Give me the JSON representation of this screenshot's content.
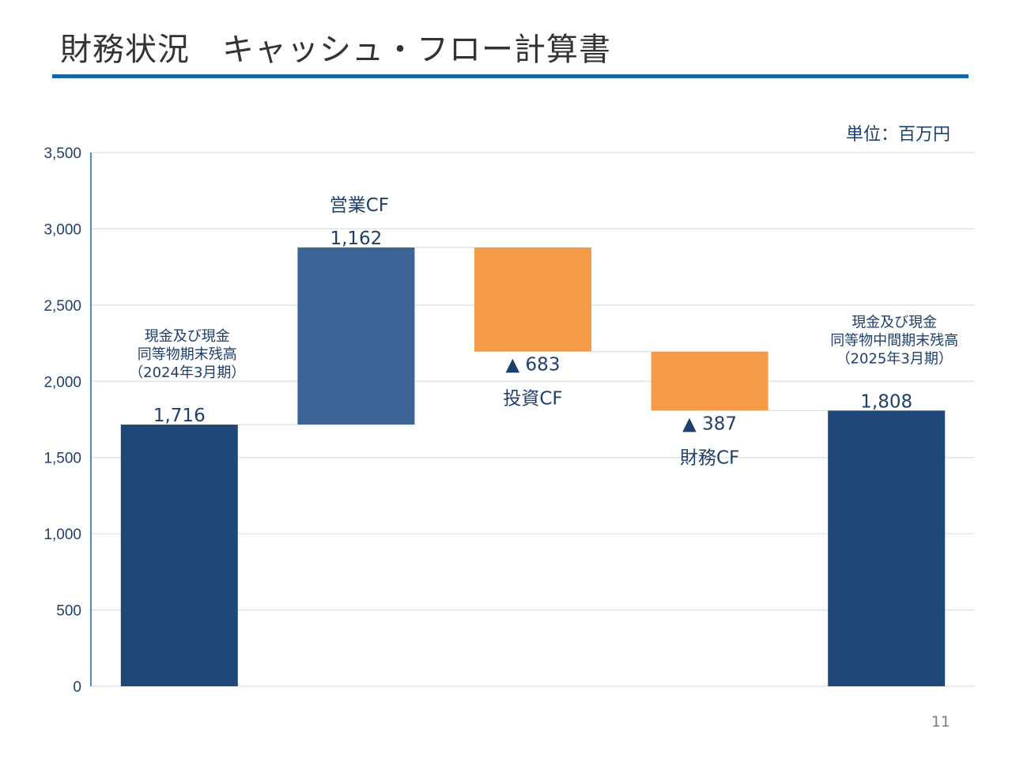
{
  "slide": {
    "title": "財務状況　キャッシュ・フロー計算書",
    "unit": "単位：百万円",
    "page_number": "11"
  },
  "colors": {
    "total": "#1f4778",
    "increase": "#3c6496",
    "decrease": "#f59a48",
    "text": "#1f3f6b",
    "grid": "#d9d9d9",
    "axis": "#1566ad"
  },
  "chart_data": {
    "type": "waterfall",
    "title": "キャッシュ・フロー計算書",
    "ylabel": "百万円",
    "ylim": [
      0,
      3500
    ],
    "yticks": [
      0,
      500,
      1000,
      1500,
      2000,
      2500,
      3000,
      3500
    ],
    "ytick_labels": [
      "0",
      "500",
      "1,000",
      "1,500",
      "2,000",
      "2,500",
      "3,000",
      "3,500"
    ],
    "grid": true,
    "bars": [
      {
        "kind": "total",
        "value": 1716,
        "label": "1,716",
        "category": "",
        "annotation": [
          "現金及び現金",
          "同等物期末残高",
          "（2024年3月期）"
        ]
      },
      {
        "kind": "increase",
        "value": 1162,
        "label": "1,162",
        "category": "営業CF",
        "annotation": []
      },
      {
        "kind": "decrease",
        "value": -683,
        "label": "▲ 683",
        "category": "投資CF",
        "annotation": []
      },
      {
        "kind": "decrease",
        "value": -387,
        "label": "▲ 387",
        "category": "財務CF",
        "annotation": []
      },
      {
        "kind": "total",
        "value": 1808,
        "label": "1,808",
        "category": "",
        "annotation": [
          "現金及び現金",
          "同等物中間期末残高",
          "（2025年3月期）"
        ]
      }
    ]
  }
}
